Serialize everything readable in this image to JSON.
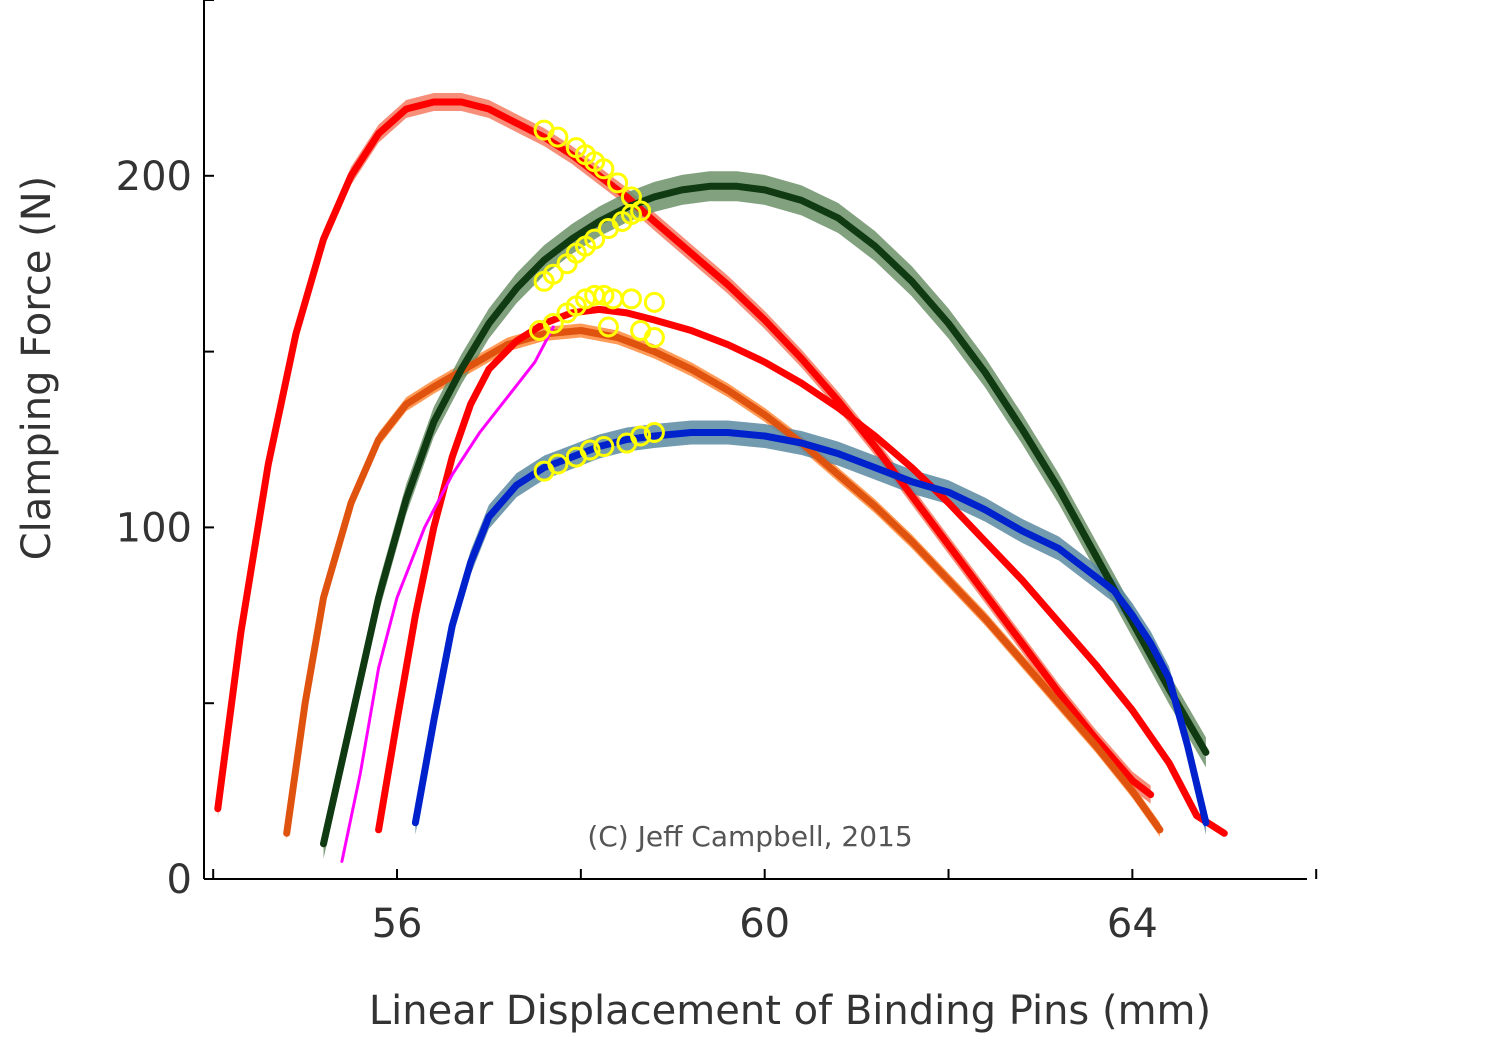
{
  "chart_data": {
    "type": "line",
    "title": "",
    "xlabel": "Linear Displacement of Binding Pins (mm)",
    "ylabel": "Clamping Force (N)",
    "xlim": [
      53.9,
      65.9
    ],
    "ylim": [
      0,
      250
    ],
    "x_ticks": [
      54,
      56,
      58,
      60,
      62,
      64,
      66
    ],
    "x_tick_labels": [
      {
        "value": 56,
        "label": "56"
      },
      {
        "value": 60,
        "label": "60"
      },
      {
        "value": 64,
        "label": "64"
      }
    ],
    "y_ticks": [
      0,
      50,
      100,
      150,
      200,
      250
    ],
    "y_tick_labels": [
      {
        "value": 0,
        "label": "0"
      },
      {
        "value": 100,
        "label": "100"
      },
      {
        "value": 200,
        "label": "200"
      }
    ],
    "grid": false,
    "credit": "(C) Jeff Campbell, 2015",
    "series": [
      {
        "color": "#ff0000",
        "band_color": "#f47a62",
        "band_width": 9,
        "x": [
          54.05,
          54.3,
          54.6,
          54.9,
          55.2,
          55.5,
          55.8,
          56.1,
          56.4,
          56.7,
          57.0,
          57.3,
          57.6,
          57.9,
          58.2,
          58.5,
          58.8,
          59.2,
          59.6,
          60.0,
          60.4,
          60.8,
          61.2,
          61.6,
          62.0,
          62.4,
          62.8,
          63.2,
          63.6,
          64.0,
          64.2
        ],
        "y": [
          20,
          70,
          118,
          155,
          182,
          200,
          212,
          219,
          221,
          221,
          219,
          215,
          211,
          206,
          200,
          194,
          187,
          178,
          169,
          159,
          148,
          136,
          123,
          109,
          95,
          81,
          67,
          53,
          40,
          28,
          24
        ]
      },
      {
        "color": "#e0530f",
        "band_color": "#ff8a3a",
        "band_width": 7,
        "x": [
          54.8,
          55.0,
          55.2,
          55.5,
          55.8,
          56.1,
          56.4,
          56.8,
          57.2,
          57.6,
          58.0,
          58.4,
          58.8,
          59.2,
          59.6,
          60.0,
          60.4,
          60.8,
          61.2,
          61.6,
          62.0,
          62.4,
          62.8,
          63.2,
          63.6,
          64.0,
          64.3
        ],
        "y": [
          13,
          50,
          80,
          107,
          125,
          135,
          140,
          146,
          152,
          155,
          156,
          154,
          150,
          145,
          139,
          132,
          124,
          115,
          106,
          96,
          85,
          74,
          62,
          50,
          38,
          25,
          14
        ]
      },
      {
        "color": "#0f3a12",
        "band_color": "#6b9168",
        "band_width": 15,
        "x": [
          55.2,
          55.5,
          55.8,
          56.1,
          56.4,
          56.7,
          57.0,
          57.3,
          57.6,
          57.9,
          58.2,
          58.5,
          58.8,
          59.1,
          59.4,
          59.7,
          60.0,
          60.4,
          60.8,
          61.2,
          61.6,
          62.0,
          62.4,
          62.8,
          63.2,
          63.6,
          64.0,
          64.4,
          64.8
        ],
        "y": [
          10,
          45,
          80,
          108,
          130,
          145,
          158,
          168,
          176,
          182,
          187,
          191,
          194,
          196,
          197,
          197,
          196,
          193,
          188,
          180,
          170,
          158,
          144,
          128,
          111,
          92,
          73,
          54,
          36
        ]
      },
      {
        "color": "#ff0000",
        "band_color": "#ffff00",
        "band_width": 3,
        "x": [
          55.8,
          56.0,
          56.2,
          56.4,
          56.6,
          56.8,
          57.0,
          57.3,
          57.6,
          57.9,
          58.2,
          58.5,
          58.8,
          59.2,
          59.6,
          60.0,
          60.4,
          60.8,
          61.2,
          61.6,
          62.0,
          62.4,
          62.8,
          63.2,
          63.6,
          64.0,
          64.4,
          64.7,
          65.0
        ],
        "y": [
          14,
          45,
          75,
          100,
          120,
          135,
          145,
          153,
          158,
          161,
          162,
          161,
          159,
          156,
          152,
          147,
          141,
          134,
          126,
          117,
          107,
          96,
          85,
          73,
          61,
          48,
          33,
          18,
          13
        ]
      },
      {
        "color": "#ff00ff",
        "band_color": "#ff00ff",
        "band_width": 0,
        "x": [
          55.4,
          55.6,
          55.8,
          56.0,
          56.3,
          56.6,
          56.9,
          57.2,
          57.5,
          57.7
        ],
        "y": [
          5,
          30,
          60,
          80,
          100,
          115,
          127,
          137,
          147,
          157
        ]
      },
      {
        "color": "#0022cc",
        "band_color": "#5b8aa2",
        "band_width": 12,
        "x": [
          56.2,
          56.4,
          56.6,
          56.8,
          57.0,
          57.3,
          57.6,
          57.9,
          58.2,
          58.5,
          58.8,
          59.2,
          59.6,
          60.0,
          60.4,
          60.8,
          61.2,
          61.6,
          62.0,
          62.4,
          62.8,
          63.2,
          63.5,
          63.8,
          64.0,
          64.2,
          64.4,
          64.6,
          64.8
        ],
        "y": [
          16,
          45,
          72,
          90,
          103,
          112,
          117,
          120,
          123,
          125,
          126,
          127,
          127,
          126,
          124,
          121,
          117,
          113,
          110,
          105,
          99,
          94,
          88,
          82,
          75,
          67,
          57,
          38,
          16
        ]
      }
    ],
    "markers": {
      "color": "#ffff00",
      "points": [
        [
          57.6,
          213
        ],
        [
          57.75,
          211
        ],
        [
          57.95,
          208
        ],
        [
          58.05,
          206
        ],
        [
          58.15,
          204
        ],
        [
          58.25,
          202
        ],
        [
          58.4,
          198
        ],
        [
          58.55,
          194
        ],
        [
          57.6,
          170
        ],
        [
          57.7,
          172
        ],
        [
          57.85,
          175
        ],
        [
          57.95,
          178
        ],
        [
          58.05,
          180
        ],
        [
          58.15,
          182
        ],
        [
          58.3,
          185
        ],
        [
          58.45,
          187
        ],
        [
          58.55,
          189
        ],
        [
          58.65,
          190
        ],
        [
          57.55,
          156
        ],
        [
          57.7,
          158
        ],
        [
          57.85,
          161
        ],
        [
          57.95,
          163
        ],
        [
          58.05,
          165
        ],
        [
          58.15,
          166
        ],
        [
          58.25,
          166
        ],
        [
          58.35,
          165
        ],
        [
          58.55,
          165
        ],
        [
          58.8,
          164
        ],
        [
          58.3,
          157
        ],
        [
          58.65,
          156
        ],
        [
          58.8,
          154
        ],
        [
          57.6,
          116
        ],
        [
          57.75,
          118
        ],
        [
          57.95,
          120
        ],
        [
          58.1,
          122
        ],
        [
          58.25,
          123
        ],
        [
          58.5,
          124
        ],
        [
          58.65,
          126
        ],
        [
          58.8,
          127
        ]
      ]
    }
  }
}
